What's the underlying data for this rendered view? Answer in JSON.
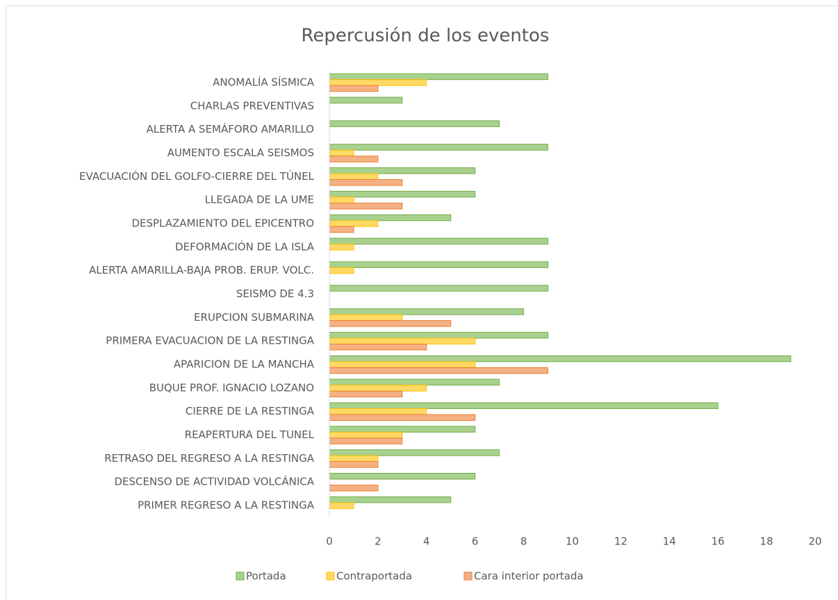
{
  "chart_data": {
    "type": "barh",
    "title": "Repercusión de los eventos",
    "categories": [
      "ANOMALÍA SÍSMICA",
      "CHARLAS PREVENTIVAS",
      "ALERTA A SEMÁFORO AMARILLO",
      "AUMENTO ESCALA SEISMOS",
      "EVACUACIÓN DEL GOLFO-CIERRE DEL TÚNEL",
      "LLEGADA DE LA UME",
      "DESPLAZAMIENTO DEL EPICENTRO",
      "DEFORMACIÓN DE LA ISLA",
      "ALERTA AMARILLA-BAJA PROB. ERUP. VOLC.",
      "SEISMO DE 4.3",
      "ERUPCION SUBMARINA",
      "PRIMERA EVACUACION DE LA RESTINGA",
      "APARICION DE LA MANCHA",
      "BUQUE PROF. IGNACIO LOZANO",
      "CIERRE DE LA RESTINGA",
      "REAPERTURA DEL TUNEL",
      "RETRASO DEL REGRESO A LA RESTINGA",
      "DESCENSO DE ACTIVIDAD VOLCÁNICA",
      "PRIMER REGRESO A LA RESTINGA"
    ],
    "series": [
      {
        "name": "Portada",
        "color": "#a9d18e",
        "edgecolor": "#70ad47",
        "values": [
          9,
          3,
          7,
          9,
          6,
          6,
          5,
          9,
          9,
          9,
          8,
          9,
          19,
          7,
          16,
          6,
          7,
          6,
          5
        ]
      },
      {
        "name": "Contraportada",
        "color": "#ffd966",
        "edgecolor": "#ffc000",
        "values": [
          4,
          0,
          0,
          1,
          2,
          1,
          2,
          1,
          1,
          0,
          3,
          6,
          6,
          4,
          4,
          3,
          2,
          0,
          1
        ]
      },
      {
        "name": "Cara interior portada",
        "color": "#f4b183",
        "edgecolor": "#ed7d31",
        "values": [
          2,
          0,
          0,
          2,
          3,
          3,
          1,
          0,
          0,
          0,
          5,
          4,
          9,
          3,
          6,
          3,
          2,
          2,
          0
        ]
      }
    ],
    "xlim": [
      0,
      20
    ],
    "xticks": [
      0,
      2,
      4,
      6,
      8,
      10,
      12,
      14,
      16,
      18,
      20
    ],
    "grid": false,
    "legend": "bottom"
  }
}
